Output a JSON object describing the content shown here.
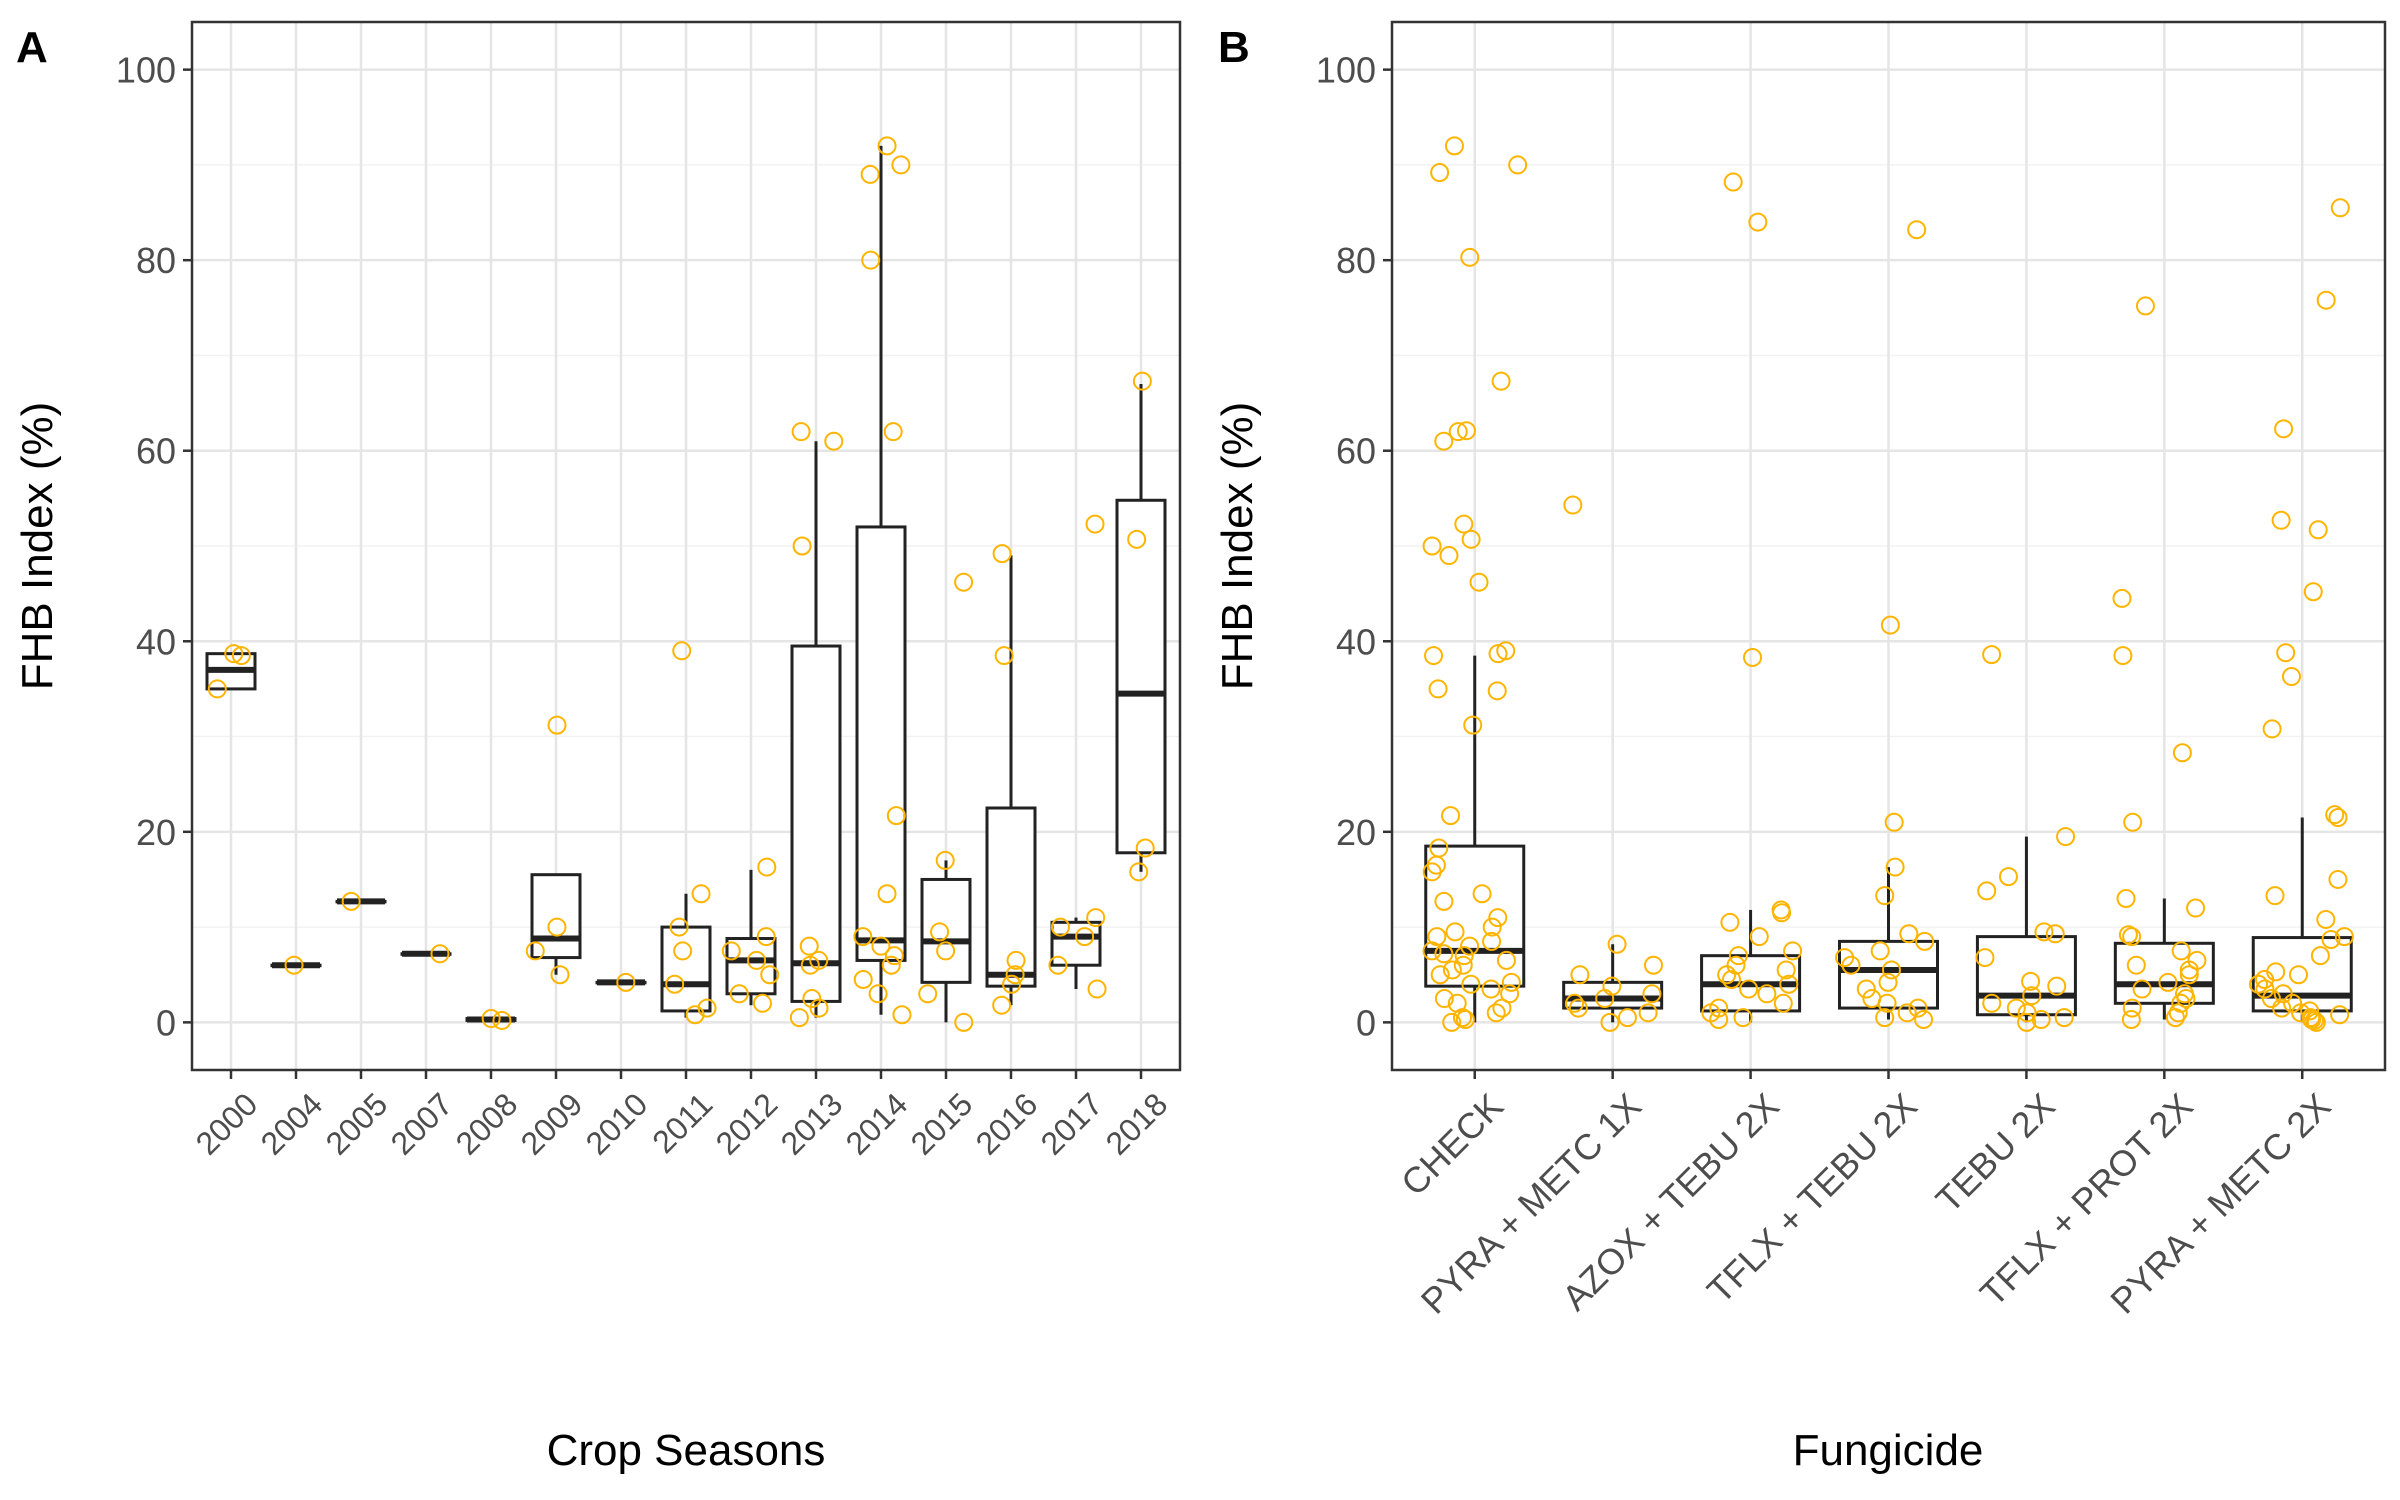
{
  "colors": {
    "point": "#FFB400",
    "box": "#222222",
    "grid_major": "#E5E5E5",
    "grid_minor": "#F2F2F2",
    "axis_text": "#4D4D4D",
    "title_text": "#000000"
  },
  "chart_data": [
    {
      "type": "box",
      "panel_label": "A",
      "xlabel": "Crop Seasons",
      "ylabel": "FHB Index (%)",
      "ylim": [
        -5,
        105
      ],
      "yticks": [
        0,
        20,
        40,
        60,
        80,
        100
      ],
      "grid": true,
      "categories": [
        "2000",
        "2004",
        "2005",
        "2007",
        "2008",
        "2009",
        "2010",
        "2011",
        "2012",
        "2013",
        "2014",
        "2015",
        "2016",
        "2017",
        "2018"
      ],
      "boxes": [
        {
          "q1": 35,
          "median": 37,
          "q3": 38.7,
          "lower": 35,
          "upper": 38.7
        },
        {
          "q1": 6,
          "median": 6,
          "q3": 6,
          "lower": 6,
          "upper": 6
        },
        {
          "q1": 12.7,
          "median": 12.7,
          "q3": 12.7,
          "lower": 12.7,
          "upper": 12.7
        },
        {
          "q1": 7.2,
          "median": 7.2,
          "q3": 7.2,
          "lower": 7.2,
          "upper": 7.2
        },
        {
          "q1": 0.2,
          "median": 0.3,
          "q3": 0.4,
          "lower": 0.2,
          "upper": 0.4
        },
        {
          "q1": 6.8,
          "median": 8.8,
          "q3": 15.5,
          "lower": 5,
          "upper": 15.5
        },
        {
          "q1": 4.2,
          "median": 4.2,
          "q3": 4.2,
          "lower": 4.2,
          "upper": 4.2
        },
        {
          "q1": 1.2,
          "median": 4,
          "q3": 10,
          "lower": 0.5,
          "upper": 13.5
        },
        {
          "q1": 3,
          "median": 6.5,
          "q3": 8.8,
          "lower": 1.8,
          "upper": 16
        },
        {
          "q1": 2.2,
          "median": 6.2,
          "q3": 39.5,
          "lower": 0.5,
          "upper": 61
        },
        {
          "q1": 6.5,
          "median": 8.6,
          "q3": 52,
          "lower": 0.8,
          "upper": 92
        },
        {
          "q1": 4.2,
          "median": 8.5,
          "q3": 15,
          "lower": 0,
          "upper": 17
        },
        {
          "q1": 3.8,
          "median": 5,
          "q3": 22.5,
          "lower": 1.8,
          "upper": 49
        },
        {
          "q1": 6,
          "median": 9,
          "q3": 10.5,
          "lower": 3.5,
          "upper": 11
        },
        {
          "q1": 17.8,
          "median": 34.5,
          "q3": 54.8,
          "lower": 15.8,
          "upper": 67
        }
      ],
      "points": [
        {
          "c": 0,
          "y": 35
        },
        {
          "c": 0,
          "y": 38.5
        },
        {
          "c": 0,
          "y": 38.7
        },
        {
          "c": 1,
          "y": 6
        },
        {
          "c": 2,
          "y": 12.7
        },
        {
          "c": 3,
          "y": 7.2
        },
        {
          "c": 4,
          "y": 0.2
        },
        {
          "c": 4,
          "y": 0.4
        },
        {
          "c": 5,
          "y": 31.2
        },
        {
          "c": 5,
          "y": 10
        },
        {
          "c": 5,
          "y": 7.5
        },
        {
          "c": 5,
          "y": 5
        },
        {
          "c": 6,
          "y": 4.2
        },
        {
          "c": 7,
          "y": 39
        },
        {
          "c": 7,
          "y": 13.5
        },
        {
          "c": 7,
          "y": 10
        },
        {
          "c": 7,
          "y": 7.5
        },
        {
          "c": 7,
          "y": 4
        },
        {
          "c": 7,
          "y": 1.5
        },
        {
          "c": 7,
          "y": 0.8
        },
        {
          "c": 8,
          "y": 16.3
        },
        {
          "c": 8,
          "y": 9
        },
        {
          "c": 8,
          "y": 7.5
        },
        {
          "c": 8,
          "y": 6.5
        },
        {
          "c": 8,
          "y": 5
        },
        {
          "c": 8,
          "y": 3
        },
        {
          "c": 8,
          "y": 2
        },
        {
          "c": 9,
          "y": 62
        },
        {
          "c": 9,
          "y": 61
        },
        {
          "c": 9,
          "y": 50
        },
        {
          "c": 9,
          "y": 8
        },
        {
          "c": 9,
          "y": 6.5
        },
        {
          "c": 9,
          "y": 6
        },
        {
          "c": 9,
          "y": 2.5
        },
        {
          "c": 9,
          "y": 1.5
        },
        {
          "c": 9,
          "y": 0.5
        },
        {
          "c": 10,
          "y": 92
        },
        {
          "c": 10,
          "y": 90
        },
        {
          "c": 10,
          "y": 89
        },
        {
          "c": 10,
          "y": 80
        },
        {
          "c": 10,
          "y": 62
        },
        {
          "c": 10,
          "y": 21.7
        },
        {
          "c": 10,
          "y": 13.5
        },
        {
          "c": 10,
          "y": 9
        },
        {
          "c": 10,
          "y": 8
        },
        {
          "c": 10,
          "y": 7
        },
        {
          "c": 10,
          "y": 6
        },
        {
          "c": 10,
          "y": 4.5
        },
        {
          "c": 10,
          "y": 3
        },
        {
          "c": 10,
          "y": 0.8
        },
        {
          "c": 11,
          "y": 46.2
        },
        {
          "c": 11,
          "y": 17
        },
        {
          "c": 11,
          "y": 9.5
        },
        {
          "c": 11,
          "y": 7.5
        },
        {
          "c": 11,
          "y": 3
        },
        {
          "c": 11,
          "y": 0
        },
        {
          "c": 12,
          "y": 49.2
        },
        {
          "c": 12,
          "y": 38.5
        },
        {
          "c": 12,
          "y": 6.5
        },
        {
          "c": 12,
          "y": 5
        },
        {
          "c": 12,
          "y": 4
        },
        {
          "c": 12,
          "y": 1.8
        },
        {
          "c": 13,
          "y": 52.3
        },
        {
          "c": 13,
          "y": 11
        },
        {
          "c": 13,
          "y": 10
        },
        {
          "c": 13,
          "y": 9
        },
        {
          "c": 13,
          "y": 6
        },
        {
          "c": 13,
          "y": 3.5
        },
        {
          "c": 14,
          "y": 67.3
        },
        {
          "c": 14,
          "y": 50.7
        },
        {
          "c": 14,
          "y": 18.3
        },
        {
          "c": 14,
          "y": 15.8
        }
      ]
    },
    {
      "type": "box",
      "panel_label": "B",
      "xlabel": "Fungicide",
      "ylabel": "FHB Index (%)",
      "ylim": [
        -5,
        105
      ],
      "yticks": [
        0,
        20,
        40,
        60,
        80,
        100
      ],
      "grid": true,
      "categories": [
        "CHECK",
        "PYRA + METC 1X",
        "AZOX + TEBU 2X",
        "TFLX + TEBU 2X",
        "TEBU 2X",
        "TFLX + PROT 2X",
        "PYRA + METC 2X"
      ],
      "boxes": [
        {
          "q1": 3.8,
          "median": 7.5,
          "q3": 18.5,
          "lower": 0,
          "upper": 38.5
        },
        {
          "q1": 1.5,
          "median": 2.5,
          "q3": 4.2,
          "lower": 0,
          "upper": 8.2
        },
        {
          "q1": 1.2,
          "median": 4,
          "q3": 7,
          "lower": 0,
          "upper": 11.8
        },
        {
          "q1": 1.5,
          "median": 5.5,
          "q3": 8.5,
          "lower": 0.3,
          "upper": 16.3
        },
        {
          "q1": 0.8,
          "median": 2.8,
          "q3": 9,
          "lower": 0,
          "upper": 19.5
        },
        {
          "q1": 2,
          "median": 4,
          "q3": 8.3,
          "lower": 0.3,
          "upper": 13
        },
        {
          "q1": 1.2,
          "median": 2.8,
          "q3": 8.9,
          "lower": 0,
          "upper": 21.5
        }
      ],
      "points": [
        {
          "c": 0,
          "y": 92
        },
        {
          "c": 0,
          "y": 90
        },
        {
          "c": 0,
          "y": 89.2
        },
        {
          "c": 0,
          "y": 80.3
        },
        {
          "c": 0,
          "y": 67.3
        },
        {
          "c": 0,
          "y": 62.1
        },
        {
          "c": 0,
          "y": 62
        },
        {
          "c": 0,
          "y": 61
        },
        {
          "c": 0,
          "y": 52.3
        },
        {
          "c": 0,
          "y": 50.7
        },
        {
          "c": 0,
          "y": 50
        },
        {
          "c": 0,
          "y": 49
        },
        {
          "c": 0,
          "y": 46.2
        },
        {
          "c": 0,
          "y": 39
        },
        {
          "c": 0,
          "y": 38.7
        },
        {
          "c": 0,
          "y": 38.5
        },
        {
          "c": 0,
          "y": 35
        },
        {
          "c": 0,
          "y": 34.8
        },
        {
          "c": 0,
          "y": 31.2
        },
        {
          "c": 0,
          "y": 21.7
        },
        {
          "c": 0,
          "y": 18.3
        },
        {
          "c": 0,
          "y": 16.5
        },
        {
          "c": 0,
          "y": 15.8
        },
        {
          "c": 0,
          "y": 13.5
        },
        {
          "c": 0,
          "y": 12.7
        },
        {
          "c": 0,
          "y": 11
        },
        {
          "c": 0,
          "y": 10
        },
        {
          "c": 0,
          "y": 9.5
        },
        {
          "c": 0,
          "y": 9
        },
        {
          "c": 0,
          "y": 8.5
        },
        {
          "c": 0,
          "y": 8
        },
        {
          "c": 0,
          "y": 7.5
        },
        {
          "c": 0,
          "y": 7.2
        },
        {
          "c": 0,
          "y": 7
        },
        {
          "c": 0,
          "y": 6.5
        },
        {
          "c": 0,
          "y": 6
        },
        {
          "c": 0,
          "y": 5.5
        },
        {
          "c": 0,
          "y": 5
        },
        {
          "c": 0,
          "y": 4.2
        },
        {
          "c": 0,
          "y": 4
        },
        {
          "c": 0,
          "y": 3.5
        },
        {
          "c": 0,
          "y": 3
        },
        {
          "c": 0,
          "y": 2.5
        },
        {
          "c": 0,
          "y": 2
        },
        {
          "c": 0,
          "y": 1.5
        },
        {
          "c": 0,
          "y": 1
        },
        {
          "c": 0,
          "y": 0.5
        },
        {
          "c": 0,
          "y": 0.3
        },
        {
          "c": 0,
          "y": 0
        },
        {
          "c": 1,
          "y": 54.3
        },
        {
          "c": 1,
          "y": 8.2
        },
        {
          "c": 1,
          "y": 6
        },
        {
          "c": 1,
          "y": 5
        },
        {
          "c": 1,
          "y": 3.8
        },
        {
          "c": 1,
          "y": 3
        },
        {
          "c": 1,
          "y": 2.5
        },
        {
          "c": 1,
          "y": 2
        },
        {
          "c": 1,
          "y": 1.5
        },
        {
          "c": 1,
          "y": 1
        },
        {
          "c": 1,
          "y": 0.5
        },
        {
          "c": 1,
          "y": 0
        },
        {
          "c": 2,
          "y": 88.2
        },
        {
          "c": 2,
          "y": 84
        },
        {
          "c": 2,
          "y": 38.3
        },
        {
          "c": 2,
          "y": 11.8
        },
        {
          "c": 2,
          "y": 11.5
        },
        {
          "c": 2,
          "y": 10.5
        },
        {
          "c": 2,
          "y": 9
        },
        {
          "c": 2,
          "y": 7.5
        },
        {
          "c": 2,
          "y": 7
        },
        {
          "c": 2,
          "y": 6
        },
        {
          "c": 2,
          "y": 5.5
        },
        {
          "c": 2,
          "y": 5
        },
        {
          "c": 2,
          "y": 4.5
        },
        {
          "c": 2,
          "y": 4
        },
        {
          "c": 2,
          "y": 3.5
        },
        {
          "c": 2,
          "y": 3
        },
        {
          "c": 2,
          "y": 2
        },
        {
          "c": 2,
          "y": 1.5
        },
        {
          "c": 2,
          "y": 1
        },
        {
          "c": 2,
          "y": 0.5
        },
        {
          "c": 2,
          "y": 0.3
        },
        {
          "c": 3,
          "y": 83.2
        },
        {
          "c": 3,
          "y": 41.7
        },
        {
          "c": 3,
          "y": 21
        },
        {
          "c": 3,
          "y": 16.3
        },
        {
          "c": 3,
          "y": 13.3
        },
        {
          "c": 3,
          "y": 9.3
        },
        {
          "c": 3,
          "y": 8.5
        },
        {
          "c": 3,
          "y": 7.5
        },
        {
          "c": 3,
          "y": 6.8
        },
        {
          "c": 3,
          "y": 6
        },
        {
          "c": 3,
          "y": 5.5
        },
        {
          "c": 3,
          "y": 4.2
        },
        {
          "c": 3,
          "y": 3.5
        },
        {
          "c": 3,
          "y": 2.5
        },
        {
          "c": 3,
          "y": 2
        },
        {
          "c": 3,
          "y": 1.5
        },
        {
          "c": 3,
          "y": 1
        },
        {
          "c": 3,
          "y": 0.5
        },
        {
          "c": 3,
          "y": 0.3
        },
        {
          "c": 4,
          "y": 38.6
        },
        {
          "c": 4,
          "y": 19.5
        },
        {
          "c": 4,
          "y": 15.3
        },
        {
          "c": 4,
          "y": 13.8
        },
        {
          "c": 4,
          "y": 9.5
        },
        {
          "c": 4,
          "y": 9.3
        },
        {
          "c": 4,
          "y": 6.8
        },
        {
          "c": 4,
          "y": 4.3
        },
        {
          "c": 4,
          "y": 3.8
        },
        {
          "c": 4,
          "y": 2.8
        },
        {
          "c": 4,
          "y": 2
        },
        {
          "c": 4,
          "y": 1.5
        },
        {
          "c": 4,
          "y": 1
        },
        {
          "c": 4,
          "y": 0.5
        },
        {
          "c": 4,
          "y": 0.3
        },
        {
          "c": 4,
          "y": 0
        },
        {
          "c": 5,
          "y": 75.2
        },
        {
          "c": 5,
          "y": 44.5
        },
        {
          "c": 5,
          "y": 38.5
        },
        {
          "c": 5,
          "y": 28.3
        },
        {
          "c": 5,
          "y": 21
        },
        {
          "c": 5,
          "y": 13
        },
        {
          "c": 5,
          "y": 12
        },
        {
          "c": 5,
          "y": 9.2
        },
        {
          "c": 5,
          "y": 9
        },
        {
          "c": 5,
          "y": 7.5
        },
        {
          "c": 5,
          "y": 6.5
        },
        {
          "c": 5,
          "y": 6
        },
        {
          "c": 5,
          "y": 5.5
        },
        {
          "c": 5,
          "y": 5
        },
        {
          "c": 5,
          "y": 4.2
        },
        {
          "c": 5,
          "y": 3.5
        },
        {
          "c": 5,
          "y": 3
        },
        {
          "c": 5,
          "y": 2.5
        },
        {
          "c": 5,
          "y": 2
        },
        {
          "c": 5,
          "y": 1.5
        },
        {
          "c": 5,
          "y": 1
        },
        {
          "c": 5,
          "y": 0.5
        },
        {
          "c": 5,
          "y": 0.3
        },
        {
          "c": 6,
          "y": 85.5
        },
        {
          "c": 6,
          "y": 75.8
        },
        {
          "c": 6,
          "y": 62.3
        },
        {
          "c": 6,
          "y": 52.7
        },
        {
          "c": 6,
          "y": 51.7
        },
        {
          "c": 6,
          "y": 45.2
        },
        {
          "c": 6,
          "y": 38.8
        },
        {
          "c": 6,
          "y": 36.3
        },
        {
          "c": 6,
          "y": 30.8
        },
        {
          "c": 6,
          "y": 21.8
        },
        {
          "c": 6,
          "y": 21.5
        },
        {
          "c": 6,
          "y": 15
        },
        {
          "c": 6,
          "y": 13.3
        },
        {
          "c": 6,
          "y": 10.8
        },
        {
          "c": 6,
          "y": 9
        },
        {
          "c": 6,
          "y": 8.7
        },
        {
          "c": 6,
          "y": 7
        },
        {
          "c": 6,
          "y": 5.3
        },
        {
          "c": 6,
          "y": 5
        },
        {
          "c": 6,
          "y": 4.5
        },
        {
          "c": 6,
          "y": 4
        },
        {
          "c": 6,
          "y": 3.5
        },
        {
          "c": 6,
          "y": 3
        },
        {
          "c": 6,
          "y": 2.5
        },
        {
          "c": 6,
          "y": 2
        },
        {
          "c": 6,
          "y": 1.5
        },
        {
          "c": 6,
          "y": 1.2
        },
        {
          "c": 6,
          "y": 1
        },
        {
          "c": 6,
          "y": 0.8
        },
        {
          "c": 6,
          "y": 0.5
        },
        {
          "c": 6,
          "y": 0.3
        },
        {
          "c": 6,
          "y": 0.2
        },
        {
          "c": 6,
          "y": 0
        }
      ]
    }
  ]
}
